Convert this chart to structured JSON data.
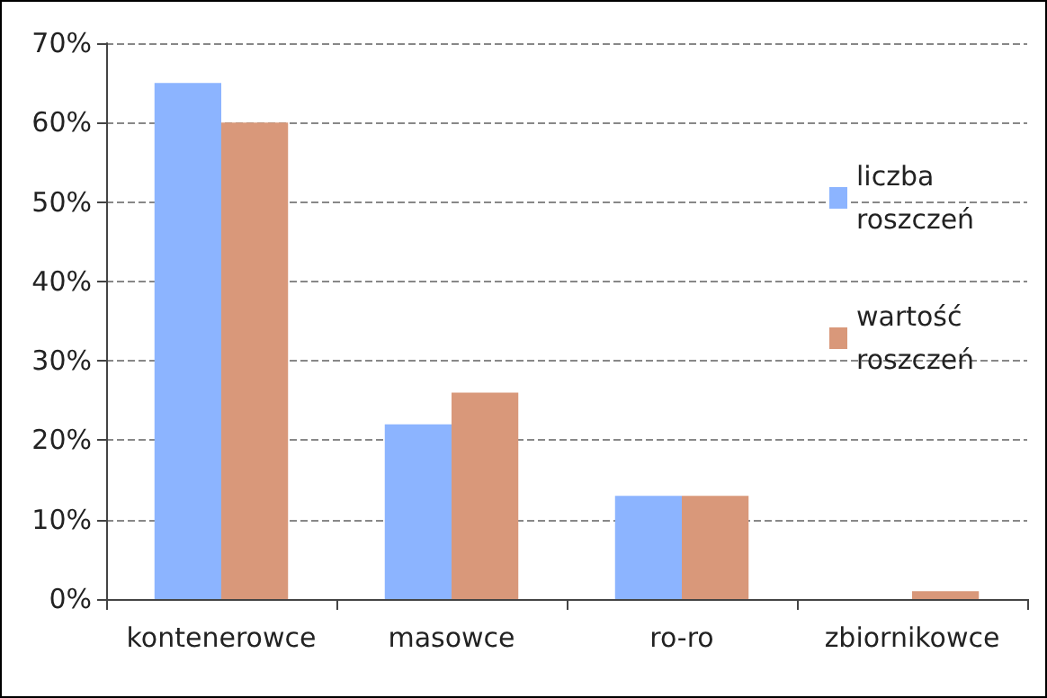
{
  "chart_data": {
    "type": "bar",
    "categories": [
      "kontenerowce",
      "masowce",
      "ro-ro",
      "zbiornikowce"
    ],
    "series": [
      {
        "name": "liczba roszczeń",
        "color": "#8cb4ff",
        "values": [
          65,
          22,
          13,
          0
        ]
      },
      {
        "name": "wartość roszczeń",
        "color": "#d9987a",
        "values": [
          60,
          26,
          13,
          1
        ]
      }
    ],
    "ylim": [
      0,
      70
    ],
    "yticks": [
      {
        "value": 0,
        "label": "0%"
      },
      {
        "value": 10,
        "label": "10%"
      },
      {
        "value": 20,
        "label": "20%"
      },
      {
        "value": 30,
        "label": "30%"
      },
      {
        "value": 40,
        "label": "40%"
      },
      {
        "value": 50,
        "label": "50%"
      },
      {
        "value": 60,
        "label": "60%"
      },
      {
        "value": 70,
        "label": "70%"
      }
    ],
    "grid": "y",
    "legend": "right"
  }
}
